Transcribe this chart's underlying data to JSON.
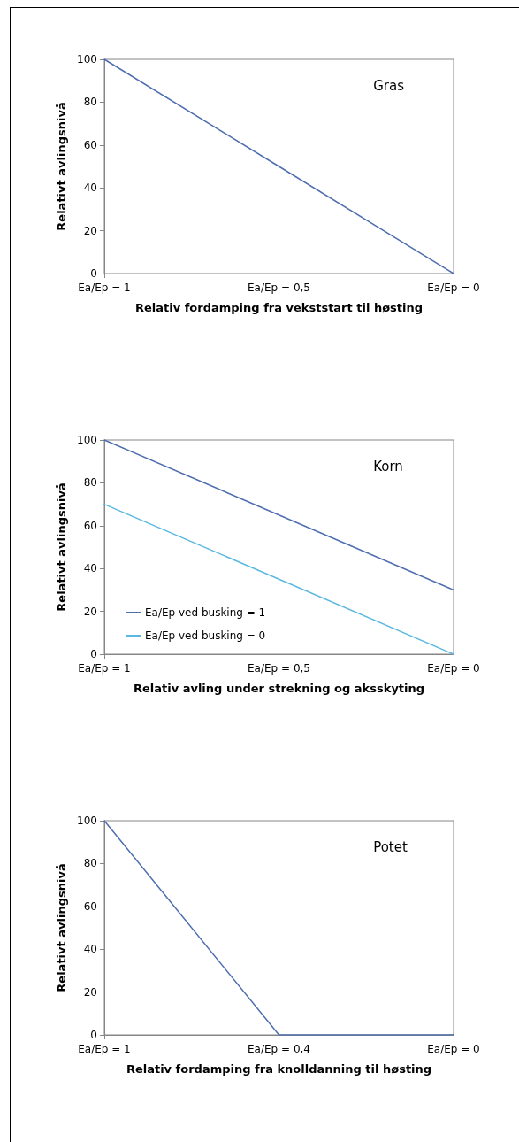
{
  "chart_data": [
    {
      "type": "line",
      "categories": [
        "Ea/Ep = 1",
        "Ea/Ep = 0,5",
        "Ea/Ep = 0"
      ],
      "series": [
        {
          "color": "#4f6eb0",
          "values": [
            100,
            50,
            0
          ]
        }
      ],
      "ylim": [
        0,
        100
      ],
      "yticks": [
        0,
        20,
        40,
        60,
        80,
        100
      ],
      "ylabel": "Relativt avlingsnivå",
      "xlabel": "Relativ fordamping fra vekststart til høsting",
      "annotations": [
        "Gras"
      ],
      "grid": false,
      "legend": false,
      "marker": "none"
    },
    {
      "type": "line",
      "categories": [
        "Ea/Ep = 1",
        "Ea/Ep = 0,5",
        "Ea/Ep = 0"
      ],
      "series": [
        {
          "name": "Ea/Ep ved busking = 1",
          "color": "#4f6eb0",
          "values": [
            100,
            65,
            30
          ]
        },
        {
          "name": "Ea/Ep ved busking = 0",
          "color": "#5bb8e0",
          "values": [
            70,
            35,
            0
          ]
        }
      ],
      "ylim": [
        0,
        100
      ],
      "yticks": [
        0,
        20,
        40,
        60,
        80,
        100
      ],
      "ylabel": "Relativt avlingsnivå",
      "xlabel": "Relativ avling under strekning og aksskyting",
      "annotations": [
        "Korn"
      ],
      "grid": false,
      "legend": "bottom left",
      "marker": "none"
    },
    {
      "type": "line",
      "categories": [
        "Ea/Ep = 1",
        "Ea/Ep = 0,4",
        "Ea/Ep = 0"
      ],
      "series": [
        {
          "color": "#4f6eb0",
          "values": [
            100,
            0,
            0
          ]
        }
      ],
      "ylim": [
        0,
        100
      ],
      "yticks": [
        0,
        20,
        40,
        60,
        80,
        100
      ],
      "ylabel": "Relativt avlingsnivå",
      "xlabel": "Relativ fordamping fra knolldanning til høsting",
      "annotations": [
        "Potet"
      ],
      "grid": false,
      "legend": false,
      "marker": "none"
    }
  ]
}
